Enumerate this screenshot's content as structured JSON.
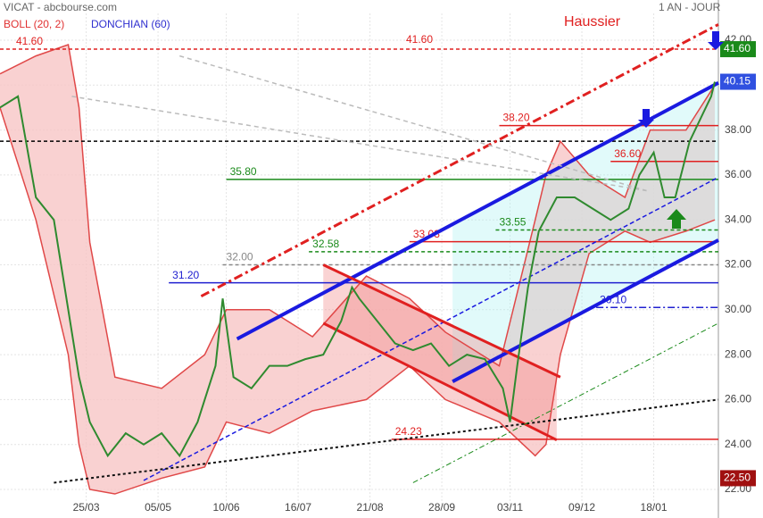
{
  "chart_data": {
    "type": "line",
    "title": "VICAT - abcbourse.com",
    "subtitle": "1 AN - JOUR",
    "indicators": [
      {
        "name": "BOLL (20, 2)",
        "color": "#e03030"
      },
      {
        "name": "DONCHIAN (60)",
        "color": "#3030d0"
      }
    ],
    "annotation": "Haussier",
    "xlim": [
      0,
      200
    ],
    "ylim": [
      22,
      42
    ],
    "grid": true,
    "xticks": [
      {
        "value": 24,
        "label": "25/03"
      },
      {
        "value": 44,
        "label": "05/05"
      },
      {
        "value": 63,
        "label": "10/06"
      },
      {
        "value": 83,
        "label": "16/07"
      },
      {
        "value": 103,
        "label": "21/08"
      },
      {
        "value": 123,
        "label": "28/09"
      },
      {
        "value": 142,
        "label": "03/11"
      },
      {
        "value": 162,
        "label": "09/12"
      },
      {
        "value": 182,
        "label": "18/01"
      }
    ],
    "yticks": [
      {
        "value": 22,
        "label": "22.00"
      },
      {
        "value": 24,
        "label": "24.00"
      },
      {
        "value": 26,
        "label": "26.00"
      },
      {
        "value": 28,
        "label": "28.00"
      },
      {
        "value": 30,
        "label": "30.00"
      },
      {
        "value": 32,
        "label": "32.00"
      },
      {
        "value": 34,
        "label": "34.00"
      },
      {
        "value": 36,
        "label": "36.00"
      },
      {
        "value": 38,
        "label": "38.00"
      },
      {
        "value": 40,
        "label": "40.00"
      },
      {
        "value": 42,
        "label": "42.00"
      }
    ],
    "series": [
      {
        "name": "VICAT",
        "color": "#2f8a2f",
        "x": [
          0,
          5,
          10,
          15,
          20,
          22,
          25,
          30,
          35,
          40,
          45,
          50,
          55,
          60,
          62,
          65,
          70,
          75,
          80,
          85,
          90,
          95,
          98,
          100,
          105,
          110,
          115,
          120,
          125,
          130,
          135,
          140,
          142,
          144,
          147,
          150,
          155,
          160,
          165,
          170,
          175,
          178,
          182,
          185,
          188,
          192,
          195,
          198,
          199
        ],
        "values": [
          39,
          39.5,
          35,
          34,
          29,
          27,
          25,
          23.5,
          24.5,
          24,
          24.5,
          23.5,
          25,
          27.5,
          30.5,
          27,
          26.5,
          27.5,
          27.5,
          27.8,
          28,
          29.5,
          31,
          30.5,
          29.5,
          28.5,
          28.2,
          28.5,
          27.5,
          28,
          27.8,
          26.5,
          25,
          27.5,
          31,
          33.5,
          35,
          35,
          34.5,
          34,
          34.5,
          36,
          37,
          35,
          35,
          37.5,
          38.5,
          39.5,
          40.15
        ]
      }
    ],
    "bollinger": {
      "color": "#e04848",
      "fill": "#f7c6c6",
      "x": [
        0,
        10,
        19,
        22,
        25,
        32,
        45,
        57,
        63,
        75,
        87,
        102,
        114,
        124,
        139,
        149,
        152,
        156,
        164,
        174,
        181,
        191,
        199
      ],
      "upper": [
        40.5,
        41.3,
        41.8,
        39,
        33,
        27,
        26.5,
        28,
        30,
        30,
        28.8,
        31.5,
        30.5,
        29,
        27.5,
        34,
        36,
        37.5,
        36,
        35,
        38,
        38,
        40
      ],
      "lower": [
        39,
        34,
        28,
        24,
        22,
        21.8,
        22.5,
        23,
        25,
        24.5,
        25.5,
        26,
        27.5,
        26,
        25,
        23.5,
        24,
        28,
        32.5,
        33.5,
        33,
        33.5,
        34
      ]
    },
    "levels": [
      {
        "value": 41.6,
        "label": "41.60",
        "x0": 0,
        "color": "#e02020",
        "dash": "4 3"
      },
      {
        "value": 38.2,
        "label": "38.20",
        "x0": 139,
        "color": "#e02020",
        "dash": ""
      },
      {
        "value": 37.5,
        "x0": 0,
        "color": "#000000",
        "dash": "4 3"
      },
      {
        "value": 36.6,
        "label": "36.60",
        "x0": 170,
        "color": "#e02020",
        "dash": ""
      },
      {
        "value": 35.8,
        "label": "35.80",
        "x0": 63,
        "color": "#1a8a1a",
        "dash": ""
      },
      {
        "value": 33.55,
        "label": "33.55",
        "x0": 138,
        "color": "#1a8a1a",
        "dash": "4 3"
      },
      {
        "value": 33.03,
        "label": "33.03",
        "x0": 114,
        "color": "#e02020",
        "dash": ""
      },
      {
        "value": 32.58,
        "label": "32.58",
        "x0": 86,
        "color": "#1a8a1a",
        "dash": "4 3"
      },
      {
        "value": 32,
        "label": "32.00",
        "x0": 62,
        "color": "#888888",
        "dash": "4 3"
      },
      {
        "value": 31.2,
        "label": "31.20",
        "x0": 47,
        "color": "#2020d0",
        "dash": ""
      },
      {
        "value": 30.1,
        "label": "30.10",
        "x0": 166,
        "color": "#2020d0",
        "dash": "8 3 2 3"
      },
      {
        "value": 24.23,
        "label": "24.23",
        "x0": 109,
        "color": "#e02020",
        "dash": ""
      }
    ],
    "trendlines": [
      {
        "x0": 66,
        "y0": 28.7,
        "x1": 200,
        "y1": 40.1,
        "color": "#1a1ae0",
        "width": 4,
        "dash": ""
      },
      {
        "x0": 126,
        "y0": 26.8,
        "x1": 200,
        "y1": 33.1,
        "color": "#1a1ae0",
        "width": 4,
        "dash": ""
      },
      {
        "x0": 40,
        "y0": 22.4,
        "x1": 200,
        "y1": 35.9,
        "color": "#1a1ae0",
        "width": 1.5,
        "dash": "5 3"
      },
      {
        "x0": 56,
        "y0": 30.6,
        "x1": 200,
        "y1": 42.7,
        "color": "#e02020",
        "width": 3,
        "dash": "10 4 3 4"
      },
      {
        "x0": 90,
        "y0": 32,
        "x1": 156,
        "y1": 27,
        "color": "#e02020",
        "width": 3,
        "dash": ""
      },
      {
        "x0": 90,
        "y0": 29.4,
        "x1": 155,
        "y1": 24.2,
        "color": "#e02020",
        "width": 3,
        "dash": ""
      },
      {
        "x0": 15,
        "y0": 22.3,
        "x1": 200,
        "y1": 26,
        "color": "#111111",
        "width": 2,
        "dash": "3 3"
      },
      {
        "x0": 50,
        "y0": 41.3,
        "x1": 180,
        "y1": 35.3,
        "color": "#bbbbbb",
        "width": 1.5,
        "dash": "5 4"
      },
      {
        "x0": 20,
        "y0": 39.5,
        "x1": 180,
        "y1": 35.3,
        "color": "#bbbbbb",
        "width": 1.5,
        "dash": "5 4"
      },
      {
        "x0": 115,
        "y0": 22.3,
        "x1": 200,
        "y1": 29.4,
        "color": "#1a8a1a",
        "width": 1,
        "dash": "6 3 2 3"
      }
    ],
    "tags": [
      {
        "value": 41.6,
        "label": "41.60",
        "color": "#1a8a1a"
      },
      {
        "value": 40.15,
        "label": "40.15",
        "color": "#3050e0"
      },
      {
        "value": 22.5,
        "label": "22.50",
        "color": "#a01010"
      }
    ]
  }
}
